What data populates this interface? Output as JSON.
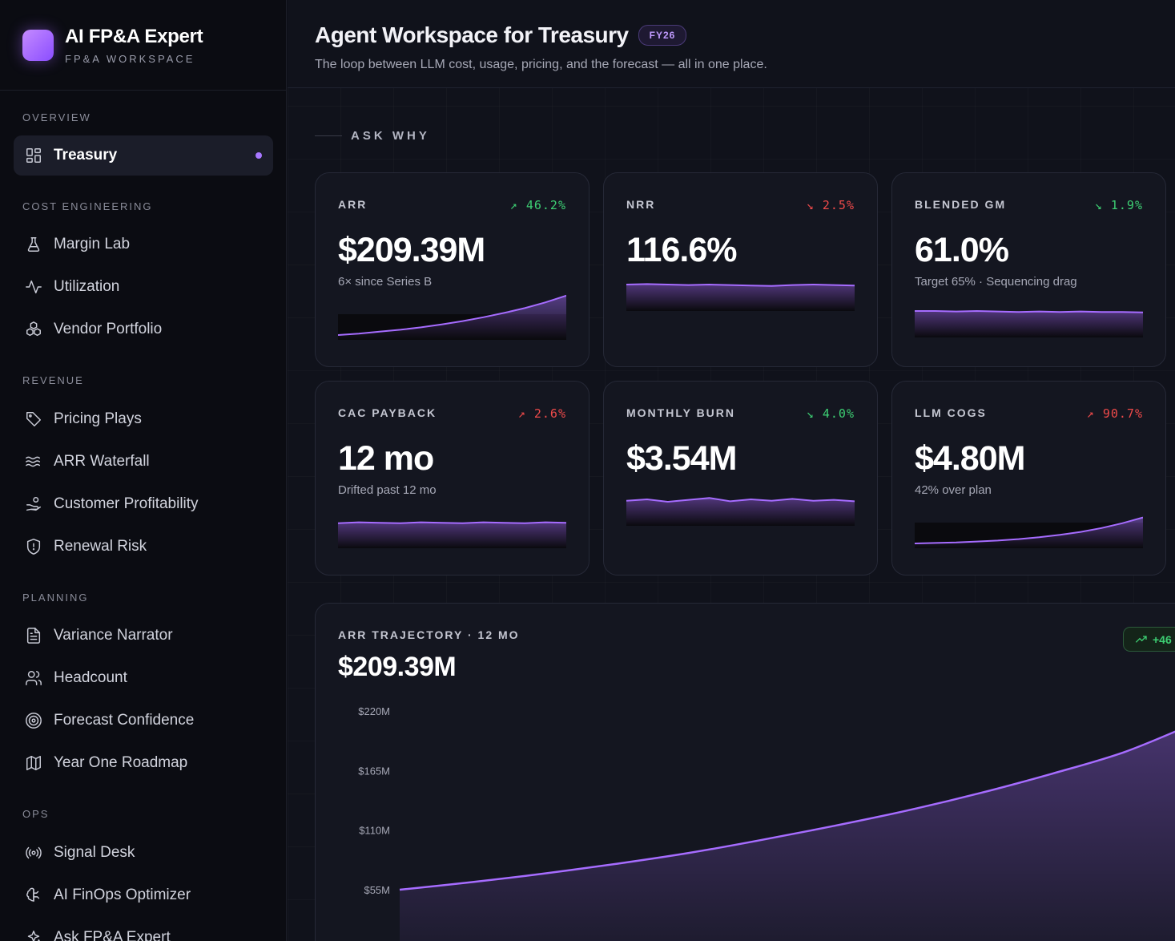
{
  "brand": {
    "title": "AI FP&A Expert",
    "subtitle": "FP&A WORKSPACE"
  },
  "sidebar": {
    "sections": [
      {
        "label": "OVERVIEW",
        "items": [
          {
            "label": "Treasury",
            "icon": "grid-icon",
            "active": true
          }
        ]
      },
      {
        "label": "COST ENGINEERING",
        "items": [
          {
            "label": "Margin Lab",
            "icon": "flask-icon"
          },
          {
            "label": "Utilization",
            "icon": "activity-icon"
          },
          {
            "label": "Vendor Portfolio",
            "icon": "boxes-icon"
          }
        ]
      },
      {
        "label": "REVENUE",
        "items": [
          {
            "label": "Pricing Plays",
            "icon": "tag-icon"
          },
          {
            "label": "ARR Waterfall",
            "icon": "waves-icon"
          },
          {
            "label": "Customer Profitability",
            "icon": "hand-coins-icon"
          },
          {
            "label": "Renewal Risk",
            "icon": "shield-icon"
          }
        ]
      },
      {
        "label": "PLANNING",
        "items": [
          {
            "label": "Variance Narrator",
            "icon": "document-icon"
          },
          {
            "label": "Headcount",
            "icon": "users-icon"
          },
          {
            "label": "Forecast Confidence",
            "icon": "target-icon"
          },
          {
            "label": "Year One Roadmap",
            "icon": "map-icon"
          }
        ]
      },
      {
        "label": "OPS",
        "items": [
          {
            "label": "Signal Desk",
            "icon": "radio-icon"
          },
          {
            "label": "AI FinOps Optimizer",
            "icon": "brain-icon"
          },
          {
            "label": "Ask FP&A Expert",
            "icon": "sparkles-icon"
          }
        ]
      }
    ]
  },
  "header": {
    "title": "Agent Workspace for Treasury",
    "badge": "FY26",
    "subtitle": "The loop between LLM cost, usage, pricing, and the forecast — all in one place."
  },
  "ask_why": "ASK WHY",
  "kpis": [
    {
      "label": "ARR",
      "delta": "↗ 46.2%",
      "trend": "up",
      "value": "$209.39M",
      "note": "6× since Series B",
      "spark": [
        0.1,
        0.13,
        0.17,
        0.21,
        0.26,
        0.32,
        0.39,
        0.47,
        0.56,
        0.66,
        0.78,
        0.92
      ]
    },
    {
      "label": "NRR",
      "delta": "↘ 2.5%",
      "trend": "down",
      "value": "116.6%",
      "note": "",
      "spark": [
        0.55,
        0.56,
        0.55,
        0.54,
        0.55,
        0.54,
        0.53,
        0.52,
        0.54,
        0.55,
        0.54,
        0.53
      ]
    },
    {
      "label": "BLENDED GM",
      "delta": "↘ 1.9%",
      "trend": "up",
      "value": "61.0%",
      "note": "Target 65% · Sequencing drag",
      "spark": [
        0.55,
        0.55,
        0.54,
        0.55,
        0.54,
        0.53,
        0.54,
        0.53,
        0.54,
        0.53,
        0.53,
        0.52
      ]
    },
    {
      "label": "CAC PAYBACK",
      "delta": "↗ 2.6%",
      "trend": "down",
      "value": "12 mo",
      "note": "Drifted past 12 mo",
      "spark": [
        0.52,
        0.54,
        0.53,
        0.52,
        0.54,
        0.53,
        0.52,
        0.54,
        0.53,
        0.52,
        0.54,
        0.53
      ]
    },
    {
      "label": "MONTHLY BURN",
      "delta": "↘ 4.0%",
      "trend": "up",
      "value": "$3.54M",
      "note": "",
      "spark": [
        0.52,
        0.55,
        0.5,
        0.54,
        0.58,
        0.51,
        0.55,
        0.52,
        0.56,
        0.52,
        0.54,
        0.51
      ]
    },
    {
      "label": "LLM COGS",
      "delta": "↗ 90.7%",
      "trend": "down",
      "value": "$4.80M",
      "note": "42% over plan",
      "spark": [
        0.1,
        0.11,
        0.12,
        0.14,
        0.16,
        0.19,
        0.23,
        0.28,
        0.34,
        0.42,
        0.52,
        0.64
      ]
    }
  ],
  "trajectory": {
    "label": "ARR TRAJECTORY · 12 MO",
    "value": "$209.39M",
    "badge": "+46"
  },
  "chart_data": {
    "type": "area",
    "title": "ARR TRAJECTORY · 12 MO",
    "ylabel": "",
    "y_ticks": [
      "$220M",
      "$165M",
      "$110M",
      "$55M"
    ],
    "y_tick_values": [
      220,
      165,
      110,
      55
    ],
    "ylim": [
      55,
      220
    ],
    "series": [
      {
        "values": [
          55,
          62,
          70,
          79,
          89,
          101,
          114,
          128,
          144,
          162,
          182,
          209.39
        ]
      }
    ],
    "color": "#a66cff"
  },
  "colors": {
    "accent": "#a66cff",
    "up": "#3dcf73",
    "down": "#ef4a4a"
  }
}
